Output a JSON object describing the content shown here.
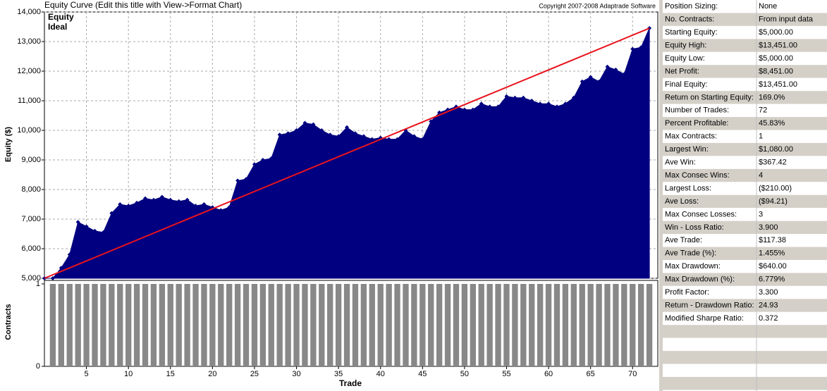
{
  "chart_data": [
    {
      "type": "area",
      "title": "Equity Curve (Edit this title with View->Format Chart)",
      "subtitle": "Copyright 2007-2008 Adaptrade Software",
      "ylabel": "Equity ($)",
      "legend": "top-left",
      "xlim": [
        0,
        73
      ],
      "ylim": [
        5000,
        14000
      ],
      "yticks": [
        {
          "value": 5000,
          "label": "5,000"
        },
        {
          "value": 6000,
          "label": "6,000"
        },
        {
          "value": 7000,
          "label": "7,000"
        },
        {
          "value": 8000,
          "label": "8,000"
        },
        {
          "value": 9000,
          "label": "9,000"
        },
        {
          "value": 10000,
          "label": "10,000"
        },
        {
          "value": 11000,
          "label": "11,000"
        },
        {
          "value": 12000,
          "label": "12,000"
        },
        {
          "value": 13000,
          "label": "13,000"
        },
        {
          "value": 14000,
          "label": "14,000"
        }
      ],
      "grid": true,
      "series": [
        {
          "name": "Equity",
          "color": "#000080",
          "x": [
            0,
            1,
            2,
            3,
            4,
            5,
            6,
            7,
            8,
            9,
            10,
            11,
            12,
            13,
            14,
            15,
            16,
            17,
            18,
            19,
            20,
            21,
            22,
            23,
            24,
            25,
            26,
            27,
            28,
            29,
            30,
            31,
            32,
            33,
            34,
            35,
            36,
            37,
            38,
            39,
            40,
            41,
            42,
            43,
            44,
            45,
            46,
            47,
            48,
            49,
            50,
            51,
            52,
            53,
            54,
            55,
            56,
            57,
            58,
            59,
            60,
            61,
            62,
            63,
            64,
            65,
            66,
            67,
            68,
            69,
            70,
            71,
            72
          ],
          "values": [
            5000,
            5000,
            5350,
            5800,
            6900,
            6750,
            6600,
            6550,
            7200,
            7500,
            7450,
            7550,
            7700,
            7650,
            7750,
            7650,
            7600,
            7650,
            7450,
            7500,
            7400,
            7300,
            7400,
            8300,
            8350,
            8850,
            9000,
            9050,
            9850,
            9900,
            10000,
            10250,
            10200,
            10000,
            9850,
            9800,
            10100,
            9900,
            9800,
            9700,
            9750,
            9700,
            9700,
            10000,
            9800,
            9700,
            10300,
            10600,
            10700,
            10800,
            10700,
            10700,
            10900,
            10800,
            10800,
            11150,
            11100,
            11100,
            11000,
            10900,
            10900,
            10800,
            10900,
            11100,
            11650,
            11800,
            11650,
            12150,
            12050,
            11900,
            12750,
            12800,
            13451
          ]
        },
        {
          "name": "Ideal",
          "color": "#e8141e",
          "x": [
            0,
            72
          ],
          "values": [
            5000,
            13451
          ]
        }
      ]
    },
    {
      "type": "bar",
      "ylabel": "Contracts",
      "xlabel": "Trade",
      "color": "#888888",
      "xlim": [
        0,
        73
      ],
      "ylim": [
        0,
        1
      ],
      "yticks": [
        0,
        1
      ],
      "xticks": [
        5,
        10,
        15,
        20,
        25,
        30,
        35,
        40,
        45,
        50,
        55,
        60,
        65,
        70
      ],
      "x": [
        1,
        2,
        3,
        4,
        5,
        6,
        7,
        8,
        9,
        10,
        11,
        12,
        13,
        14,
        15,
        16,
        17,
        18,
        19,
        20,
        21,
        22,
        23,
        24,
        25,
        26,
        27,
        28,
        29,
        30,
        31,
        32,
        33,
        34,
        35,
        36,
        37,
        38,
        39,
        40,
        41,
        42,
        43,
        44,
        45,
        46,
        47,
        48,
        49,
        50,
        51,
        52,
        53,
        54,
        55,
        56,
        57,
        58,
        59,
        60,
        61,
        62,
        63,
        64,
        65,
        66,
        67,
        68,
        69,
        70,
        71,
        72
      ],
      "values": [
        1,
        1,
        1,
        1,
        1,
        1,
        1,
        1,
        1,
        1,
        1,
        1,
        1,
        1,
        1,
        1,
        1,
        1,
        1,
        1,
        1,
        1,
        1,
        1,
        1,
        1,
        1,
        1,
        1,
        1,
        1,
        1,
        1,
        1,
        1,
        1,
        1,
        1,
        1,
        1,
        1,
        1,
        1,
        1,
        1,
        1,
        1,
        1,
        1,
        1,
        1,
        1,
        1,
        1,
        1,
        1,
        1,
        1,
        1,
        1,
        1,
        1,
        1,
        1,
        1,
        1,
        1,
        1,
        1,
        1,
        1,
        1
      ]
    }
  ],
  "table": {
    "rows": [
      [
        "Position Sizing:",
        "None"
      ],
      [
        "No. Contracts:",
        "From input data"
      ],
      [
        "Starting Equity:",
        "$5,000.00"
      ],
      [
        "Equity High:",
        "$13,451.00"
      ],
      [
        "Equity Low:",
        "$5,000.00"
      ],
      [
        "Net Profit:",
        "$8,451.00"
      ],
      [
        "Final Equity:",
        "$13,451.00"
      ],
      [
        "Return on Starting Equity:",
        "169.0%"
      ],
      [
        "Number of Trades:",
        "72"
      ],
      [
        "Percent Profitable:",
        "45.83%"
      ],
      [
        "Max Contracts:",
        "1"
      ],
      [
        "Largest Win:",
        "$1,080.00"
      ],
      [
        "Ave Win:",
        "$367.42"
      ],
      [
        "Max Consec Wins:",
        "4"
      ],
      [
        "Largest Loss:",
        "($210.00)"
      ],
      [
        "Ave Loss:",
        "($94.21)"
      ],
      [
        "Max Consec Losses:",
        "3"
      ],
      [
        "Win - Loss Ratio:",
        "3.900"
      ],
      [
        "Ave Trade:",
        "$117.38"
      ],
      [
        "Ave Trade (%):",
        "1.455%"
      ],
      [
        "Max Drawdown:",
        "$640.00"
      ],
      [
        "Max Drawdown (%):",
        "6.779%"
      ],
      [
        "Profit Factor:",
        "3.300"
      ],
      [
        "Return - Drawdown Ratio:",
        "24.93"
      ],
      [
        "Modified Sharpe Ratio:",
        "0.372"
      ]
    ]
  }
}
